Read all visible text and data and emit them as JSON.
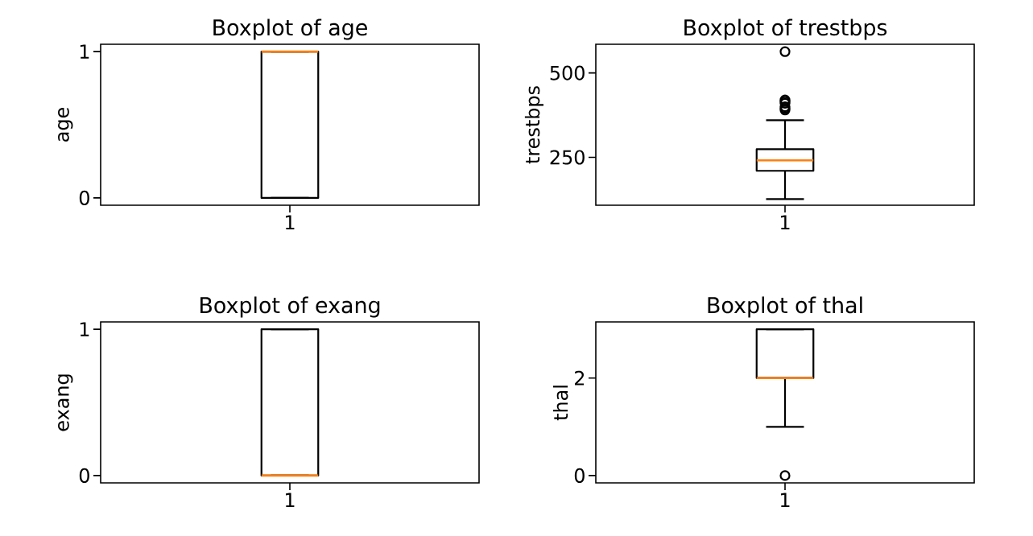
{
  "chart_data": [
    {
      "type": "box",
      "title": "Boxplot of age",
      "ylabel": "age",
      "categories": [
        "1"
      ],
      "color": "#000000",
      "ylim": [
        -0.05,
        1.05
      ],
      "yticks": [
        0,
        1
      ],
      "boxes": [
        {
          "low": 0,
          "q1": 0,
          "median": 1,
          "q3": 1,
          "high": 1
        }
      ]
    },
    {
      "type": "box",
      "title": "Boxplot of trestbps",
      "ylabel": "trestbps",
      "categories": [
        "1"
      ],
      "color": "#000000",
      "ylim": [
        108,
        585
      ],
      "yticks": [
        250,
        500
      ],
      "marker": "circle",
      "boxes": [
        {
          "low": 126,
          "q1": 210,
          "median": 241,
          "q3": 274,
          "high": 360,
          "outliers": [
            390,
            395,
            400,
            410,
            415,
            420,
            563
          ]
        }
      ]
    },
    {
      "type": "box",
      "title": "Boxplot of exang",
      "ylabel": "exang",
      "categories": [
        "1"
      ],
      "color": "#000000",
      "ylim": [
        -0.05,
        1.05
      ],
      "yticks": [
        0,
        1
      ],
      "boxes": [
        {
          "low": 0,
          "q1": 0,
          "median": 0,
          "q3": 1,
          "high": 1
        }
      ]
    },
    {
      "type": "box",
      "title": "Boxplot of thal",
      "ylabel": "thal",
      "categories": [
        "1"
      ],
      "color": "#000000",
      "ylim": [
        -0.15,
        3.15
      ],
      "yticks": [
        0,
        2
      ],
      "marker": "circle",
      "boxes": [
        {
          "low": 1,
          "q1": 2,
          "median": 2,
          "q3": 3,
          "high": 3,
          "outliers": [
            0
          ]
        }
      ]
    }
  ]
}
